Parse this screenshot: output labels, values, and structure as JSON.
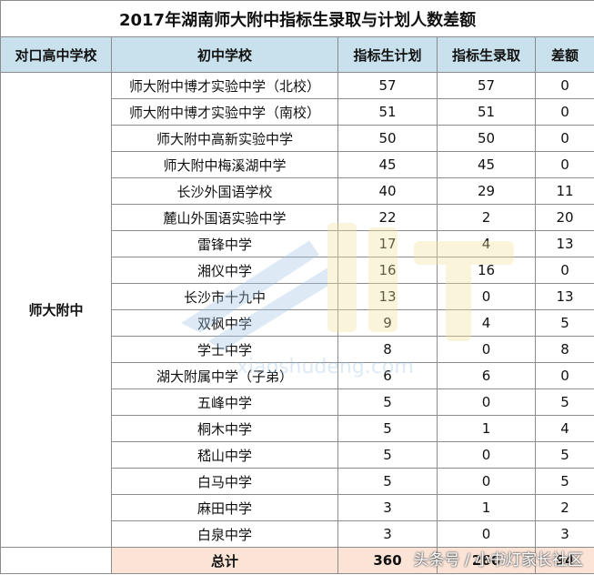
{
  "title": "2017年湖南师大附中指标生录取与计划人数差额",
  "headers": [
    "对口高中学校",
    "初中学校",
    "指标生计划",
    "指标生录取",
    "差额"
  ],
  "high_school": "师大附中",
  "rows": [
    {
      "school": "师大附中博才实验中学（北校）",
      "plan": "57",
      "admitted": "57",
      "diff": "0"
    },
    {
      "school": "师大附中博才实验中学（南校）",
      "plan": "51",
      "admitted": "51",
      "diff": "0"
    },
    {
      "school": "师大附中高新实验中学",
      "plan": "50",
      "admitted": "50",
      "diff": "0"
    },
    {
      "school": "师大附中梅溪湖中学",
      "plan": "45",
      "admitted": "45",
      "diff": "0"
    },
    {
      "school": "长沙外国语学校",
      "plan": "40",
      "admitted": "29",
      "diff": "11"
    },
    {
      "school": "麓山外国语实验中学",
      "plan": "22",
      "admitted": "2",
      "diff": "20"
    },
    {
      "school": "雷锋中学",
      "plan": "17",
      "admitted": "4",
      "diff": "13"
    },
    {
      "school": "湘仪中学",
      "plan": "16",
      "admitted": "16",
      "diff": "0"
    },
    {
      "school": "长沙市十九中",
      "plan": "13",
      "admitted": "0",
      "diff": "13"
    },
    {
      "school": "双枫中学",
      "plan": "9",
      "admitted": "4",
      "diff": "5"
    },
    {
      "school": "学士中学",
      "plan": "8",
      "admitted": "0",
      "diff": "8"
    },
    {
      "school": "湖大附属中学（子弟）",
      "plan": "6",
      "admitted": "6",
      "diff": "0"
    },
    {
      "school": "五峰中学",
      "plan": "5",
      "admitted": "0",
      "diff": "5"
    },
    {
      "school": "桐木中学",
      "plan": "5",
      "admitted": "1",
      "diff": "4"
    },
    {
      "school": "嵇山中学",
      "plan": "5",
      "admitted": "0",
      "diff": "5"
    },
    {
      "school": "白马中学",
      "plan": "5",
      "admitted": "0",
      "diff": "5"
    },
    {
      "school": "麻田中学",
      "plan": "3",
      "admitted": "1",
      "diff": "2"
    },
    {
      "school": "白泉中学",
      "plan": "3",
      "admitted": "0",
      "diff": "3"
    }
  ],
  "total": {
    "label": "总计",
    "plan": "360",
    "admitted": "266",
    "diff": "94"
  },
  "watermark_text": "xiaoshudeng.com",
  "credit": "头条号 / 小书灯家长社区",
  "colors": {
    "header_bg": "#c9e1ec",
    "total_bg": "#fbe3d6",
    "border": "#8c8c8c"
  }
}
